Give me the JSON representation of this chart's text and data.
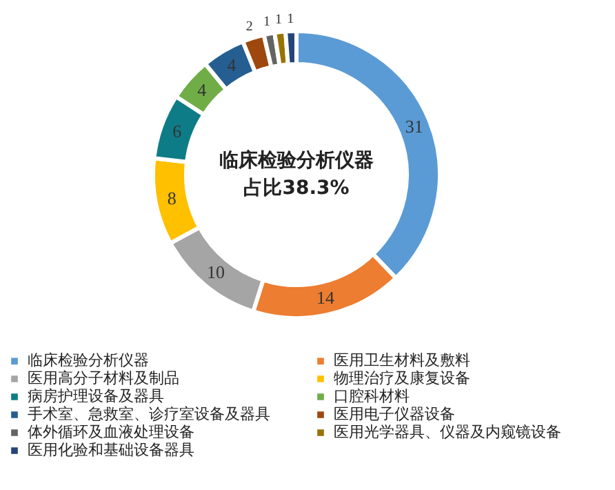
{
  "chart_data": {
    "type": "donut",
    "categories": [
      "临床检验分析仪器",
      "医用卫生材料及敷料",
      "医用高分子材料及制品",
      "物理治疗及康复设备",
      "病房护理设备及器具",
      "口腔科材料",
      "手术室、急救室、诊疗室设备及器具",
      "医用电子仪器设备",
      "体外循环及血液处理设备",
      "医用光学器具、仪器及内窥镜设备",
      "医用化验和基础设备器具"
    ],
    "values": [
      31,
      14,
      10,
      8,
      6,
      4,
      4,
      2,
      1,
      1,
      1
    ],
    "colors": [
      "#5b9bd5",
      "#ed7d31",
      "#a5a5a5",
      "#ffc000",
      "#0e7c86",
      "#70ad47",
      "#255e91",
      "#9e480e",
      "#636363",
      "#997300",
      "#264478"
    ],
    "data_labels": true,
    "legend": "bottom",
    "annotations": [
      "临床检验分析仪器",
      "占比38.3%"
    ]
  }
}
